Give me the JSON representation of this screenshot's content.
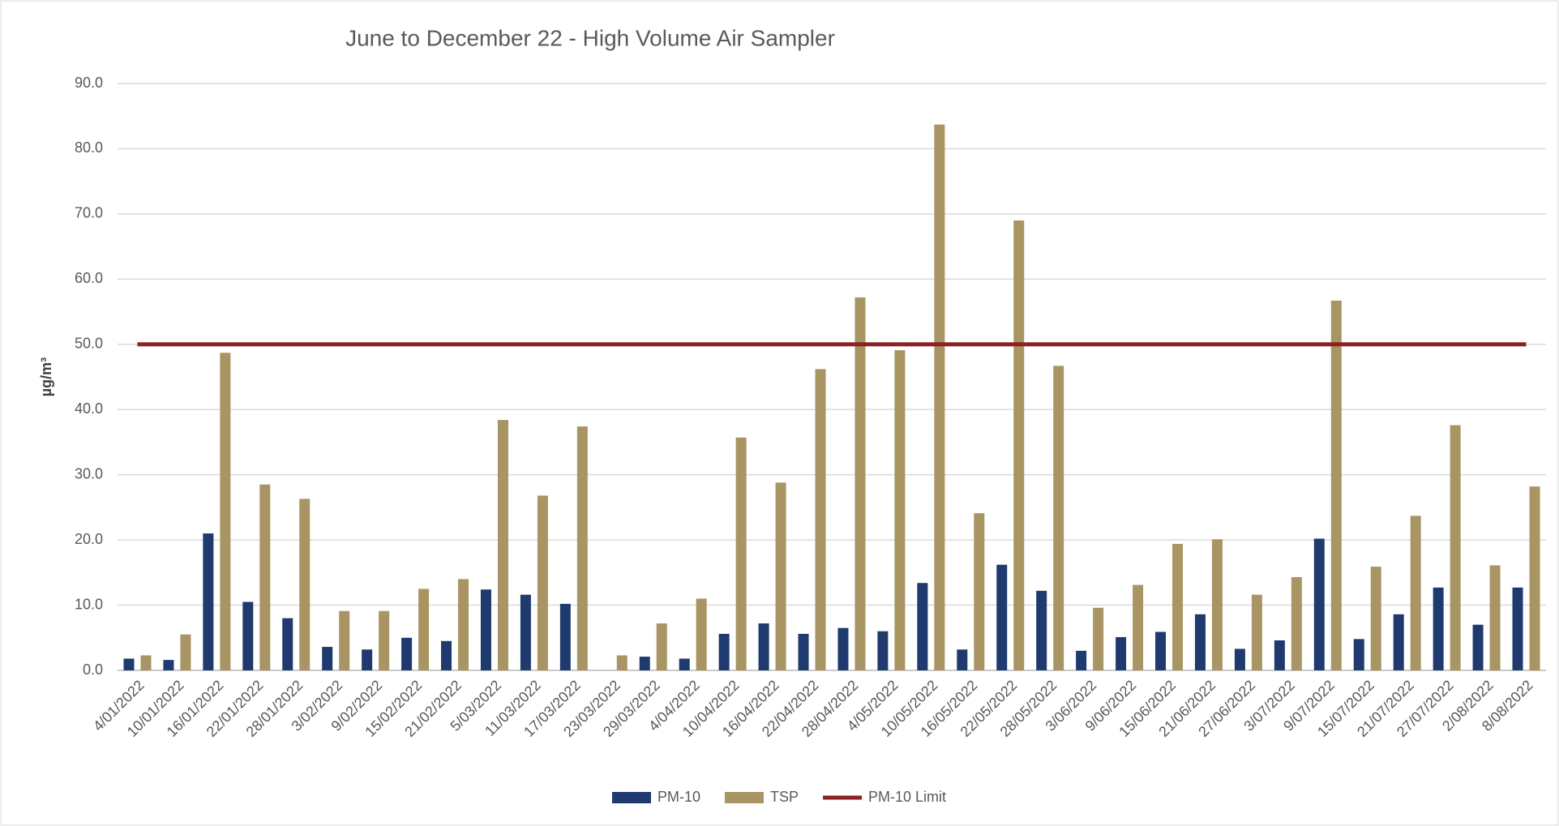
{
  "chart_data": {
    "type": "bar",
    "title": "June to December 22 - High Volume Air Sampler",
    "y_label": "µg/m³",
    "categories": [
      "4/01/2022",
      "10/01/2022",
      "16/01/2022",
      "22/01/2022",
      "28/01/2022",
      "3/02/2022",
      "9/02/2022",
      "15/02/2022",
      "21/02/2022",
      "5/03/2022",
      "11/03/2022",
      "17/03/2022",
      "23/03/2022",
      "29/03/2022",
      "4/04/2022",
      "10/04/2022",
      "16/04/2022",
      "22/04/2022",
      "28/04/2022",
      "4/05/2022",
      "10/05/2022",
      "16/05/2022",
      "22/05/2022",
      "28/05/2022",
      "3/06/2022",
      "9/06/2022",
      "15/06/2022",
      "21/06/2022",
      "27/06/2022",
      "3/07/2022",
      "9/07/2022",
      "15/07/2022",
      "21/07/2022",
      "27/07/2022",
      "2/08/2022",
      "8/08/2022"
    ],
    "series": [
      {
        "name": "PM-10",
        "color": "#1f3a6e",
        "values": [
          1.8,
          1.6,
          21.0,
          10.5,
          8.0,
          3.6,
          3.2,
          5.0,
          4.5,
          12.4,
          11.6,
          10.2,
          null,
          2.1,
          1.8,
          5.6,
          7.2,
          5.6,
          6.5,
          6.0,
          13.4,
          3.2,
          16.2,
          12.2,
          3.0,
          5.1,
          5.9,
          8.6,
          3.3,
          4.6,
          20.2,
          4.8,
          8.6,
          12.7,
          7.0,
          12.7
        ]
      },
      {
        "name": "TSP",
        "color": "#a89563",
        "values": [
          2.3,
          5.5,
          48.7,
          28.5,
          26.3,
          9.1,
          9.1,
          12.5,
          14.0,
          38.4,
          26.8,
          37.4,
          2.3,
          7.2,
          11.0,
          35.7,
          28.8,
          46.2,
          57.2,
          49.1,
          83.7,
          24.1,
          69.0,
          46.7,
          9.6,
          13.1,
          19.4,
          20.1,
          11.6,
          14.3,
          56.7,
          15.9,
          23.7,
          37.6,
          16.1,
          28.2
        ]
      },
      {
        "name": "PM-10 Limit",
        "color": "#8b2323",
        "type": "line",
        "values": [
          50,
          50,
          50,
          50,
          50,
          50,
          50,
          50,
          50,
          50,
          50,
          50,
          50,
          50,
          50,
          50,
          50,
          50,
          50,
          50,
          50,
          50,
          50,
          50,
          50,
          50,
          50,
          50,
          50,
          50,
          50,
          50,
          50,
          50,
          50,
          50
        ]
      }
    ],
    "ylim": [
      0,
      90
    ],
    "yticks": [
      {
        "value": 0,
        "label": "0.0"
      },
      {
        "value": 10,
        "label": "10.0"
      },
      {
        "value": 20,
        "label": "20.0"
      },
      {
        "value": 30,
        "label": "30.0"
      },
      {
        "value": 40,
        "label": "40.0"
      },
      {
        "value": 50,
        "label": "50.0"
      },
      {
        "value": 60,
        "label": "60.0"
      },
      {
        "value": 70,
        "label": "70.0"
      },
      {
        "value": 80,
        "label": "80.0"
      },
      {
        "value": 90,
        "label": "90.0"
      }
    ],
    "grid": true,
    "legend": "bottom"
  }
}
